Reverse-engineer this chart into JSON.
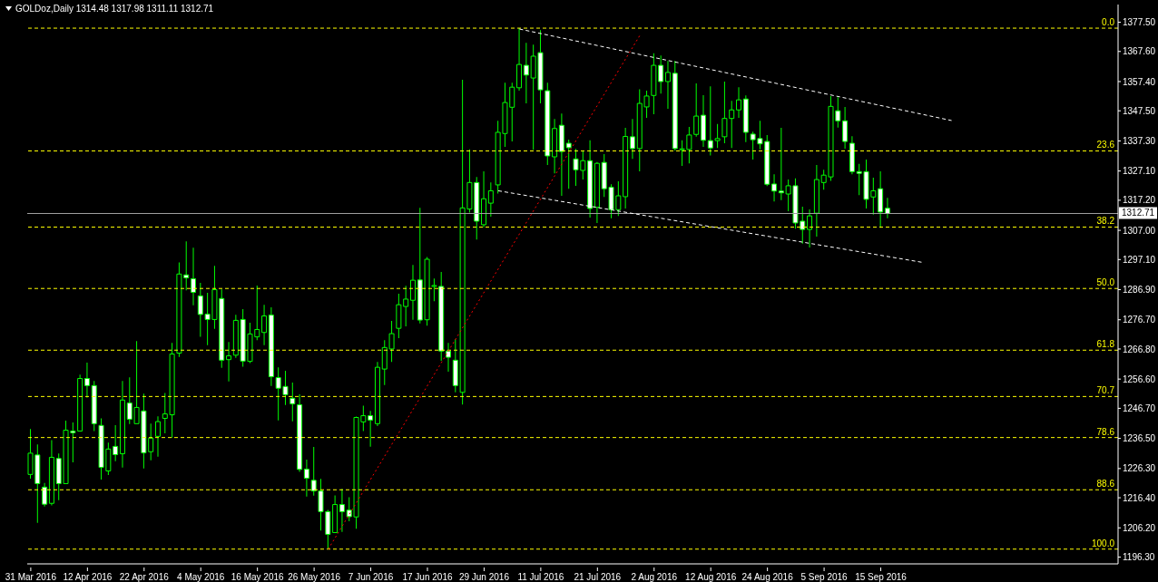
{
  "chart_data": {
    "type": "candlestick",
    "title": "GOLDoz,Daily  1314.48 1317.98 1311.11 1312.71",
    "color": "#00ff00",
    "categories": [
      "31 Mar 2016",
      null,
      null,
      null,
      null,
      null,
      null,
      null,
      "12 Apr 2016",
      null,
      null,
      null,
      null,
      null,
      null,
      null,
      "22 Apr 2016",
      null,
      null,
      null,
      null,
      null,
      null,
      null,
      "4 May 2016",
      null,
      null,
      null,
      null,
      null,
      null,
      null,
      "16 May 2016",
      null,
      null,
      null,
      null,
      null,
      null,
      null,
      "26 May 2016",
      null,
      null,
      null,
      null,
      null,
      null,
      null,
      "7 Jun 2016",
      null,
      null,
      null,
      null,
      null,
      null,
      null,
      "17 Jun 2016",
      null,
      null,
      null,
      null,
      null,
      null,
      null,
      "29 Jun 2016",
      null,
      null,
      null,
      null,
      null,
      null,
      null,
      "11 Jul 2016",
      null,
      null,
      null,
      null,
      null,
      null,
      null,
      "21 Jul 2016",
      null,
      null,
      null,
      null,
      null,
      null,
      null,
      "2 Aug 2016",
      null,
      null,
      null,
      null,
      null,
      null,
      null,
      "12 Aug 2016",
      null,
      null,
      null,
      null,
      null,
      null,
      null,
      "24 Aug 2016",
      null,
      null,
      null,
      null,
      null,
      null,
      null,
      "5 Sep 2016",
      null,
      null,
      null,
      null,
      null,
      null,
      null,
      "15 Sep 2016",
      null,
      null,
      null,
      null,
      null,
      null,
      null,
      null,
      null,
      null,
      null,
      null,
      null,
      null,
      null,
      null,
      null,
      null,
      null,
      null,
      null,
      null,
      null,
      null,
      null,
      null,
      null,
      null,
      null,
      null,
      null,
      null,
      null
    ],
    "ohlc": [
      [
        1224.3,
        1239.7,
        1222.9,
        1231.5
      ],
      [
        1230.9,
        1234.5,
        1207.9,
        1221.2
      ],
      [
        1220.0,
        1221.4,
        1213.4,
        1214.2
      ],
      [
        1214.5,
        1235.9,
        1213.8,
        1230.1
      ],
      [
        1229.7,
        1231.4,
        1215.6,
        1221.2
      ],
      [
        1221.2,
        1242.5,
        1221.2,
        1239.3
      ],
      [
        1239.0,
        1241.9,
        1228.4,
        1238.4
      ],
      [
        1239.0,
        1258.1,
        1239.0,
        1256.8
      ],
      [
        1256.8,
        1262.2,
        1250.3,
        1254.4
      ],
      [
        1254.4,
        1256.0,
        1239.0,
        1241.5
      ],
      [
        1240.9,
        1243.3,
        1222.6,
        1226.7
      ],
      [
        1225.5,
        1235.1,
        1224.1,
        1232.9
      ],
      [
        1233.8,
        1241.0,
        1228.8,
        1231.0
      ],
      [
        1231.3,
        1256.0,
        1226.6,
        1249.5
      ],
      [
        1248.5,
        1257.2,
        1241.4,
        1243.0
      ],
      [
        1241.5,
        1269.5,
        1241.5,
        1247.0
      ],
      [
        1245.8,
        1251.7,
        1226.3,
        1231.6
      ],
      [
        1232.0,
        1241.5,
        1229.1,
        1236.6
      ],
      [
        1237.2,
        1244.0,
        1230.3,
        1242.2
      ],
      [
        1243.3,
        1251.9,
        1238.2,
        1244.8
      ],
      [
        1244.5,
        1268.9,
        1236.8,
        1265.1
      ],
      [
        1265.4,
        1296.1,
        1264.1,
        1292.2
      ],
      [
        1291.9,
        1303.3,
        1286.7,
        1290.9
      ],
      [
        1290.6,
        1301.1,
        1281.6,
        1286.0
      ],
      [
        1284.8,
        1289.2,
        1270.9,
        1278.5
      ],
      [
        1278.6,
        1285.8,
        1268.1,
        1276.8
      ],
      [
        1276.8,
        1295.0,
        1273.6,
        1286.9
      ],
      [
        1283.9,
        1287.0,
        1260.4,
        1263.0
      ],
      [
        1263.2,
        1269.2,
        1255.8,
        1264.5
      ],
      [
        1264.7,
        1278.4,
        1263.8,
        1276.5
      ],
      [
        1276.8,
        1280.3,
        1260.8,
        1262.7
      ],
      [
        1262.6,
        1275.7,
        1262.0,
        1271.9
      ],
      [
        1270.9,
        1288.3,
        1269.8,
        1273.4
      ],
      [
        1272.4,
        1281.8,
        1268.1,
        1278.0
      ],
      [
        1278.3,
        1280.9,
        1254.3,
        1257.4
      ],
      [
        1257.1,
        1260.6,
        1242.6,
        1253.5
      ],
      [
        1254.1,
        1259.4,
        1247.8,
        1251.3
      ],
      [
        1250.1,
        1255.4,
        1242.3,
        1248.2
      ],
      [
        1247.9,
        1251.4,
        1225.2,
        1226.0
      ],
      [
        1226.1,
        1229.3,
        1216.8,
        1223.0
      ],
      [
        1222.3,
        1233.6,
        1217.1,
        1218.7
      ],
      [
        1218.7,
        1222.8,
        1205.3,
        1211.7
      ],
      [
        1211.7,
        1212.3,
        1199.0,
        1204.0
      ],
      [
        1204.6,
        1217.2,
        1204.6,
        1214.1
      ],
      [
        1214.1,
        1219.4,
        1204.8,
        1211.7
      ],
      [
        1212.2,
        1216.6,
        1208.4,
        1210.0
      ],
      [
        1209.9,
        1243.9,
        1205.9,
        1243.6
      ],
      [
        1242.1,
        1247.6,
        1239.0,
        1244.2
      ],
      [
        1244.2,
        1245.8,
        1233.7,
        1242.7
      ],
      [
        1241.5,
        1262.4,
        1240.7,
        1260.6
      ],
      [
        1260.0,
        1269.8,
        1254.6,
        1267.3
      ],
      [
        1266.8,
        1276.3,
        1262.4,
        1272.0
      ],
      [
        1273.8,
        1285.5,
        1270.5,
        1281.8
      ],
      [
        1281.2,
        1288.2,
        1274.5,
        1283.7
      ],
      [
        1283.3,
        1295.3,
        1276.7,
        1290.1
      ],
      [
        1290.2,
        1314.6,
        1275.5,
        1276.6
      ],
      [
        1276.7,
        1298.0,
        1274.7,
        1297.2
      ],
      [
        1288.0,
        1290.7,
        1283.0,
        1288.0
      ],
      [
        1288.0,
        1292.9,
        1262.8,
        1266.1
      ],
      [
        1266.1,
        1268.9,
        1259.1,
        1264.0
      ],
      [
        1263.0,
        1270.1,
        1252.1,
        1254.4
      ],
      [
        1252.1,
        1358.0,
        1248.0,
        1314.6
      ],
      [
        1314.2,
        1334.4,
        1313.0,
        1323.2
      ],
      [
        1323.2,
        1325.1,
        1303.9,
        1310.1
      ],
      [
        1308.9,
        1327.0,
        1308.0,
        1317.7
      ],
      [
        1316.2,
        1323.2,
        1311.6,
        1320.4
      ],
      [
        1322.4,
        1344.1,
        1319.5,
        1340.2
      ],
      [
        1339.8,
        1357.0,
        1335.3,
        1350.3
      ],
      [
        1348.7,
        1357.0,
        1337.1,
        1355.5
      ],
      [
        1355.3,
        1375.5,
        1354.3,
        1363.2
      ],
      [
        1362.9,
        1370.5,
        1350.0,
        1359.6
      ],
      [
        1358.6,
        1369.9,
        1334.3,
        1366.0
      ],
      [
        1367.2,
        1374.8,
        1350.0,
        1354.6
      ],
      [
        1354.3,
        1357.0,
        1329.1,
        1332.2
      ],
      [
        1331.9,
        1344.7,
        1326.3,
        1341.5
      ],
      [
        1342.6,
        1346.6,
        1318.7,
        1333.7
      ],
      [
        1336.5,
        1337.7,
        1321.1,
        1335.0
      ],
      [
        1331.2,
        1334.6,
        1322.1,
        1327.5
      ],
      [
        1327.3,
        1334.0,
        1324.2,
        1330.6
      ],
      [
        1330.6,
        1337.5,
        1311.3,
        1314.4
      ],
      [
        1314.8,
        1330.1,
        1309.5,
        1329.7
      ],
      [
        1330.0,
        1332.8,
        1318.3,
        1321.1
      ],
      [
        1321.6,
        1322.6,
        1311.1,
        1314.0
      ],
      [
        1314.0,
        1323.6,
        1311.9,
        1318.7
      ],
      [
        1318.4,
        1341.7,
        1314.4,
        1338.8
      ],
      [
        1338.7,
        1344.7,
        1331.2,
        1334.7
      ],
      [
        1334.7,
        1354.8,
        1327.0,
        1350.0
      ],
      [
        1348.8,
        1354.3,
        1345.1,
        1352.5
      ],
      [
        1352.7,
        1367.0,
        1346.3,
        1362.9
      ],
      [
        1362.9,
        1366.2,
        1353.3,
        1357.4
      ],
      [
        1357.4,
        1364.4,
        1348.2,
        1360.5
      ],
      [
        1360.2,
        1364.4,
        1334.0,
        1334.7
      ],
      [
        1334.3,
        1337.5,
        1328.8,
        1334.6
      ],
      [
        1334.4,
        1342.0,
        1329.7,
        1339.3
      ],
      [
        1339.5,
        1356.8,
        1338.7,
        1345.7
      ],
      [
        1346.0,
        1352.8,
        1335.3,
        1337.5
      ],
      [
        1337.4,
        1355.8,
        1332.4,
        1334.9
      ],
      [
        1337.4,
        1343.0,
        1334.9,
        1338.1
      ],
      [
        1338.7,
        1357.4,
        1336.5,
        1344.9
      ],
      [
        1344.9,
        1350.9,
        1334.9,
        1347.8
      ],
      [
        1347.8,
        1355.5,
        1345.1,
        1351.2
      ],
      [
        1351.5,
        1352.7,
        1336.9,
        1340.2
      ],
      [
        1339.6,
        1340.4,
        1331.0,
        1337.7
      ],
      [
        1338.1,
        1344.1,
        1334.4,
        1336.3
      ],
      [
        1337.1,
        1339.3,
        1322.0,
        1322.6
      ],
      [
        1322.7,
        1326.0,
        1316.8,
        1320.3
      ],
      [
        1320.3,
        1341.7,
        1317.2,
        1319.7
      ],
      [
        1319.3,
        1324.2,
        1313.5,
        1322.1
      ],
      [
        1322.1,
        1324.6,
        1307.6,
        1309.5
      ],
      [
        1310.1,
        1315.0,
        1302.5,
        1307.3
      ],
      [
        1307.3,
        1314.1,
        1301.2,
        1311.9
      ],
      [
        1312.8,
        1329.1,
        1304.9,
        1324.2
      ],
      [
        1323.2,
        1327.5,
        1320.8,
        1325.7
      ],
      [
        1325.1,
        1352.5,
        1323.8,
        1349.0
      ],
      [
        1347.5,
        1352.1,
        1341.8,
        1344.1
      ],
      [
        1344.1,
        1348.8,
        1334.7,
        1337.1
      ],
      [
        1336.5,
        1338.9,
        1326.0,
        1326.9
      ],
      [
        1326.9,
        1329.5,
        1318.9,
        1326.3
      ],
      [
        1326.9,
        1331.0,
        1314.4,
        1317.5
      ],
      [
        1318.3,
        1324.8,
        1312.3,
        1320.4
      ],
      [
        1321.1,
        1327.0,
        1307.9,
        1313.2
      ],
      [
        1314.48,
        1317.98,
        1311.11,
        1312.71
      ],
      null,
      null,
      null,
      null,
      null,
      null,
      null,
      null,
      null,
      null,
      null,
      null,
      null,
      null,
      null,
      null,
      null,
      null,
      null,
      null,
      null,
      null,
      null,
      null,
      null,
      null,
      null,
      null,
      null,
      null,
      null,
      null
    ],
    "series": [
      {
        "type": "line",
        "color": "#ff0000",
        "line_style": "dotted",
        "values": [
          null,
          null,
          null,
          null,
          null,
          null,
          null,
          null,
          null,
          null,
          null,
          null,
          null,
          null,
          null,
          null,
          null,
          null,
          null,
          null,
          null,
          null,
          null,
          null,
          null,
          null,
          null,
          null,
          null,
          null,
          null,
          null,
          null,
          null,
          null,
          null,
          null,
          null,
          null,
          null,
          null,
          null,
          1199.0,
          null,
          null,
          null,
          null,
          null,
          null,
          null,
          null,
          null,
          null,
          null,
          null,
          null,
          null,
          null,
          null,
          null,
          null,
          null,
          null,
          null,
          null,
          null,
          null,
          null,
          null,
          null,
          null,
          null,
          null,
          null,
          null,
          null,
          null,
          null,
          null,
          null,
          null,
          null,
          null,
          null,
          null,
          null,
          1373.1,
          null,
          null,
          null,
          null,
          null,
          null,
          null,
          null,
          null,
          null,
          null,
          null,
          null,
          null,
          null,
          null,
          null,
          null,
          null,
          null,
          null,
          null,
          null,
          null,
          null,
          null,
          null,
          null,
          null,
          null,
          null,
          null,
          null,
          null,
          null,
          null,
          null,
          null,
          null,
          null,
          null,
          null,
          null,
          null,
          null,
          null,
          null,
          null,
          null,
          null,
          null,
          null,
          null,
          null,
          null,
          null,
          null,
          null,
          null,
          null,
          null,
          null,
          null,
          null,
          null,
          null,
          null
        ]
      },
      {
        "type": "line",
        "color": "#ffffff",
        "line_style": "dashed",
        "values": [
          null,
          null,
          null,
          null,
          null,
          null,
          null,
          null,
          null,
          null,
          null,
          null,
          null,
          null,
          null,
          null,
          null,
          null,
          null,
          null,
          null,
          null,
          null,
          null,
          null,
          null,
          null,
          null,
          null,
          null,
          null,
          null,
          null,
          null,
          null,
          null,
          null,
          null,
          null,
          null,
          null,
          null,
          null,
          null,
          null,
          null,
          null,
          null,
          null,
          null,
          null,
          null,
          null,
          null,
          null,
          null,
          null,
          null,
          null,
          null,
          null,
          null,
          null,
          null,
          null,
          null,
          null,
          null,
          null,
          1375.2,
          null,
          null,
          null,
          null,
          null,
          null,
          null,
          null,
          null,
          null,
          null,
          null,
          null,
          null,
          null,
          null,
          null,
          null,
          null,
          null,
          null,
          null,
          null,
          null,
          null,
          null,
          null,
          null,
          null,
          null,
          null,
          null,
          null,
          null,
          null,
          null,
          null,
          null,
          null,
          null,
          null,
          null,
          null,
          null,
          null,
          null,
          null,
          null,
          null,
          null,
          null,
          null,
          null,
          null,
          null,
          null,
          null,
          null,
          null,
          null,
          1344.2,
          null,
          null,
          null,
          null,
          null,
          null,
          null,
          null,
          null,
          null,
          null,
          null,
          null,
          null,
          null,
          null,
          null,
          null,
          null,
          null,
          null,
          null,
          null
        ]
      },
      {
        "type": "line",
        "color": "#ffffff",
        "line_style": "dashed",
        "values": [
          null,
          null,
          null,
          null,
          null,
          null,
          null,
          null,
          null,
          null,
          null,
          null,
          null,
          null,
          null,
          null,
          null,
          null,
          null,
          null,
          null,
          null,
          null,
          null,
          null,
          null,
          null,
          null,
          null,
          null,
          null,
          null,
          null,
          null,
          null,
          null,
          null,
          null,
          null,
          null,
          null,
          null,
          null,
          null,
          null,
          null,
          null,
          null,
          null,
          null,
          null,
          null,
          null,
          null,
          null,
          null,
          null,
          null,
          null,
          null,
          null,
          null,
          null,
          null,
          null,
          null,
          1320.4,
          null,
          null,
          null,
          null,
          null,
          null,
          null,
          null,
          null,
          null,
          null,
          null,
          null,
          null,
          null,
          null,
          null,
          null,
          null,
          null,
          null,
          null,
          null,
          null,
          null,
          null,
          null,
          null,
          null,
          null,
          null,
          null,
          null,
          null,
          null,
          null,
          null,
          null,
          null,
          null,
          null,
          null,
          null,
          null,
          null,
          null,
          null,
          null,
          null,
          null,
          null,
          null,
          null,
          null,
          null,
          null,
          null,
          null,
          null,
          1296.1,
          null,
          null,
          null,
          null,
          null,
          null,
          null,
          null,
          null,
          null,
          null,
          null,
          null,
          null,
          null,
          null,
          null,
          null,
          null,
          null,
          null,
          null,
          null,
          null,
          null,
          null,
          null
        ]
      }
    ],
    "ylim": [
      1194.0,
      1383.5
    ],
    "yticks": [
      {
        "value": 1377.5,
        "label": "1377.50"
      },
      {
        "value": 1367.6,
        "label": "1367.60"
      },
      {
        "value": 1357.4,
        "label": "1357.40"
      },
      {
        "value": 1347.5,
        "label": "1347.50"
      },
      {
        "value": 1337.3,
        "label": "1337.30"
      },
      {
        "value": 1327.1,
        "label": "1327.10"
      },
      {
        "value": 1317.2,
        "label": "1317.20"
      },
      {
        "value": 1307.0,
        "label": "1307.00"
      },
      {
        "value": 1297.1,
        "label": "1297.10"
      },
      {
        "value": 1286.9,
        "label": "1286.90"
      },
      {
        "value": 1276.7,
        "label": "1276.70"
      },
      {
        "value": 1266.8,
        "label": "1266.80"
      },
      {
        "value": 1256.6,
        "label": "1256.60"
      },
      {
        "value": 1246.7,
        "label": "1246.70"
      },
      {
        "value": 1236.5,
        "label": "1236.50"
      },
      {
        "value": 1226.3,
        "label": "1226.30"
      },
      {
        "value": 1216.4,
        "label": "1216.40"
      },
      {
        "value": 1206.2,
        "label": "1206.20"
      },
      {
        "value": 1196.3,
        "label": "1196.30"
      }
    ],
    "ref_lines": [
      {
        "axis": "y",
        "value": 1375.5,
        "color": "#ffff00",
        "line_style": "dashed"
      },
      {
        "axis": "y",
        "value": 1333.9,
        "color": "#ffff00",
        "line_style": "dashed"
      },
      {
        "axis": "y",
        "value": 1308.1,
        "color": "#ffff00",
        "line_style": "dashed"
      },
      {
        "axis": "y",
        "value": 1287.3,
        "color": "#ffff00",
        "line_style": "dashed"
      },
      {
        "axis": "y",
        "value": 1266.4,
        "color": "#ffff00",
        "line_style": "dashed"
      },
      {
        "axis": "y",
        "value": 1250.7,
        "color": "#ffff00",
        "line_style": "dashed"
      },
      {
        "axis": "y",
        "value": 1236.8,
        "color": "#ffff00",
        "line_style": "dashed"
      },
      {
        "axis": "y",
        "value": 1219.1,
        "color": "#ffff00",
        "line_style": "dashed"
      },
      {
        "axis": "y",
        "value": 1199.0,
        "color": "#ffff00",
        "line_style": "dashed"
      },
      {
        "axis": "y",
        "value": 1312.71,
        "label": "1312.71",
        "color": "#a0a0a0",
        "line_style": "solid"
      }
    ],
    "annotations": [
      {
        "text": "0.0",
        "y": 1375.5
      },
      {
        "text": "23.6",
        "y": 1333.9
      },
      {
        "text": "38.2",
        "y": 1308.1
      },
      {
        "text": "50.0",
        "y": 1287.3
      },
      {
        "text": "61.8",
        "y": 1266.4
      },
      {
        "text": "70.7",
        "y": 1250.7
      },
      {
        "text": "78.6",
        "y": 1236.8
      },
      {
        "text": "88.6",
        "y": 1219.1
      },
      {
        "text": "100.0",
        "y": 1199.0
      }
    ]
  }
}
